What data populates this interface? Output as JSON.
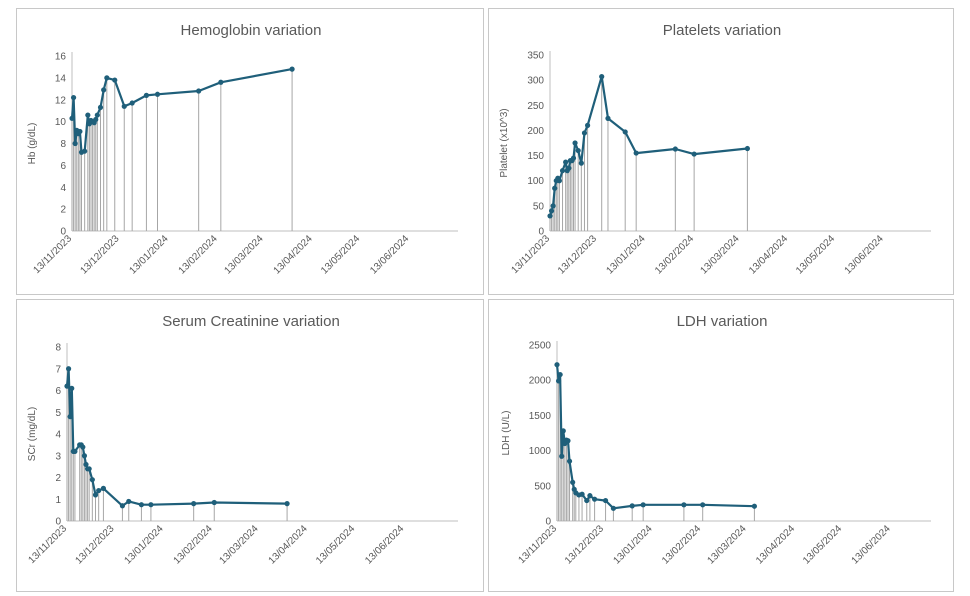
{
  "chart_data": [
    {
      "type": "line",
      "title": "Hemoglobin variation",
      "xlabel": "",
      "ylabel": "Hb (g/dL)",
      "ylim": [
        0,
        16
      ],
      "yticks": [
        "0",
        "2",
        "4",
        "6",
        "8",
        "10",
        "12",
        "14",
        "16"
      ],
      "xticks": [
        "13/11/2023",
        "13/12/2023",
        "13/01/2024",
        "13/02/2024",
        "13/03/2024",
        "13/04/2024",
        "13/05/2024",
        "13/06/2024"
      ],
      "x": [
        0,
        1,
        2,
        3,
        4,
        5,
        6,
        8,
        10,
        11,
        12,
        13,
        14,
        15,
        16,
        18,
        20,
        22,
        27,
        33,
        38,
        47,
        54,
        80,
        94,
        139
      ],
      "values": [
        10.3,
        12.2,
        8.0,
        9.2,
        8.9,
        9.1,
        7.2,
        7.3,
        10.6,
        9.8,
        10.1,
        10.0,
        9.9,
        10.2,
        10.6,
        11.3,
        12.9,
        14.0,
        13.8,
        11.4,
        11.7,
        12.4,
        12.5,
        12.8,
        13.6,
        14.8
      ]
    },
    {
      "type": "line",
      "title": "Platelets variation",
      "xlabel": "",
      "ylabel": "Platelet (x10^3)",
      "ylim": [
        0,
        350
      ],
      "yticks": [
        "0",
        "50",
        "100",
        "150",
        "200",
        "250",
        "300",
        "350"
      ],
      "xticks": [
        "13/11/2023",
        "13/12/2023",
        "13/01/2024",
        "13/02/2024",
        "13/03/2024",
        "13/04/2024",
        "13/05/2024",
        "13/06/2024"
      ],
      "x": [
        0,
        1,
        2,
        3,
        4,
        5,
        6,
        8,
        10,
        11,
        12,
        13,
        14,
        15,
        16,
        18,
        20,
        22,
        24,
        33,
        37,
        48,
        55,
        80,
        92,
        126
      ],
      "values": [
        30,
        40,
        50,
        85,
        100,
        105,
        100,
        120,
        137,
        120,
        125,
        140,
        140,
        145,
        175,
        160,
        135,
        195,
        210,
        307,
        224,
        197,
        155,
        163,
        153,
        164
      ]
    },
    {
      "type": "line",
      "title": "Serum Creatinine variation",
      "xlabel": "",
      "ylabel": "SCr (mg/dL)",
      "ylim": [
        0,
        8
      ],
      "yticks": [
        "0",
        "1",
        "2",
        "3",
        "4",
        "5",
        "6",
        "7",
        "8"
      ],
      "xticks": [
        "13/11/2023",
        "13/12/2023",
        "13/01/2024",
        "13/02/2024",
        "13/03/2024",
        "13/04/2024",
        "13/05/2024",
        "13/06/2024"
      ],
      "x": [
        0,
        1,
        2,
        3,
        4,
        5,
        8,
        9,
        10,
        11,
        12,
        13,
        14,
        16,
        18,
        20,
        23,
        35,
        39,
        47,
        53,
        80,
        93,
        139
      ],
      "values": [
        6.2,
        7.0,
        4.8,
        6.1,
        3.2,
        3.2,
        3.5,
        3.5,
        3.4,
        3.0,
        2.6,
        2.4,
        2.4,
        1.9,
        1.2,
        1.4,
        1.5,
        0.7,
        0.9,
        0.75,
        0.75,
        0.8,
        0.85,
        0.8
      ]
    },
    {
      "type": "line",
      "title": "LDH variation",
      "xlabel": "",
      "ylabel": "LDH (U/L)",
      "ylim": [
        0,
        2500
      ],
      "yticks": [
        "0",
        "500",
        "1000",
        "1500",
        "2000",
        "2500"
      ],
      "xticks": [
        "13/11/2023",
        "13/12/2023",
        "13/01/2024",
        "13/02/2024",
        "13/03/2024",
        "13/04/2024",
        "13/05/2024",
        "13/06/2024"
      ],
      "x": [
        0,
        1,
        2,
        3,
        4,
        5,
        6,
        7,
        8,
        10,
        11,
        12,
        14,
        16,
        19,
        21,
        24,
        31,
        36,
        48,
        55,
        81,
        93,
        126
      ],
      "values": [
        2220,
        1990,
        2080,
        920,
        1280,
        1100,
        1150,
        1140,
        850,
        550,
        450,
        400,
        370,
        380,
        290,
        360,
        310,
        290,
        180,
        215,
        230,
        230,
        230,
        210
      ]
    }
  ]
}
